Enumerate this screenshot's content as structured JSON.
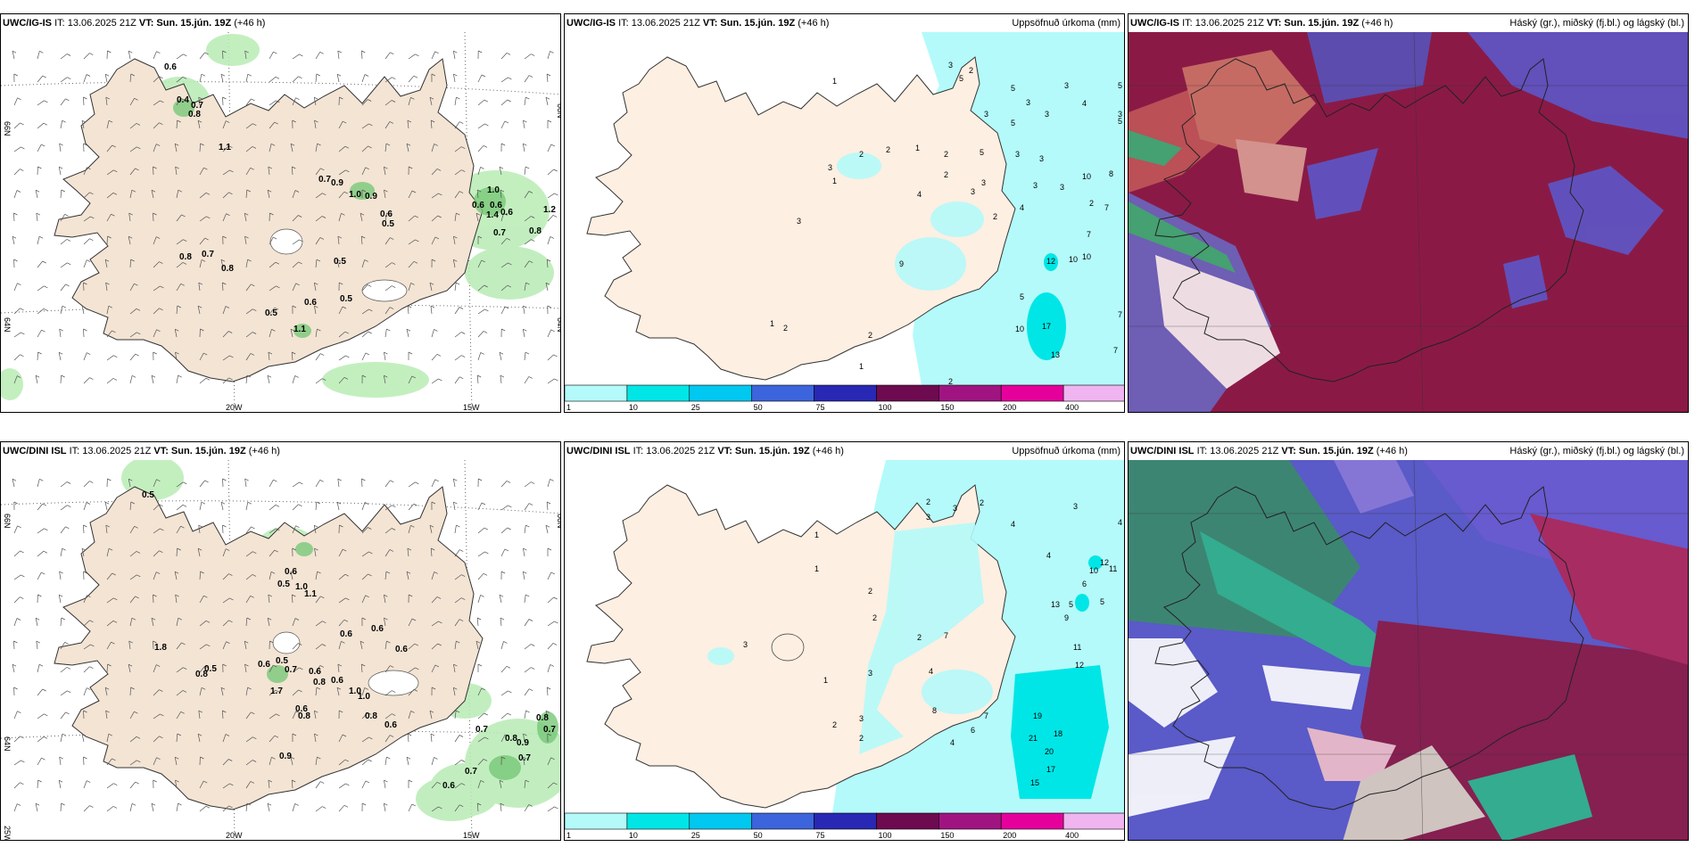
{
  "panels": {
    "p1": {
      "model": "UWC/IG-IS",
      "it": "IT: 13.06.2025 21Z",
      "vt_label": "VT:",
      "vt": "Sun. 15.jún. 19Z",
      "lead": "(+46 h)",
      "right": ""
    },
    "p2": {
      "model": "UWC/IG-IS",
      "it": "IT: 13.06.2025 21Z",
      "vt_label": "VT:",
      "vt": "Sun. 15.jún. 19Z",
      "lead": "(+46 h)",
      "right": "Uppsöfnuð úrkoma (mm)"
    },
    "p3": {
      "model": "UWC/IG-IS",
      "it": "IT: 13.06.2025 21Z",
      "vt_label": "VT:",
      "vt": "Sun. 15.jún. 19Z",
      "lead": "(+46 h)",
      "right": "Háský (gr.), miðský (fj.bl.) og lágský (bl.)"
    },
    "p4": {
      "model": "UWC/DINI ISL",
      "it": "IT: 13.06.2025 21Z",
      "vt_label": "VT:",
      "vt": "Sun. 15.jún. 19Z",
      "lead": "(+46 h)",
      "right": ""
    },
    "p5": {
      "model": "UWC/DINI ISL",
      "it": "IT: 13.06.2025 21Z",
      "vt_label": "VT:",
      "vt": "Sun. 15.jún. 19Z",
      "lead": "(+46 h)",
      "right": "Uppsöfnuð úrkoma (mm)"
    },
    "p6": {
      "model": "UWC/DINI ISL",
      "it": "IT: 13.06.2025 21Z",
      "vt_label": "VT:",
      "vt": "Sun. 15.jún. 19Z",
      "lead": "(+46 h)",
      "right": "Háský (gr.), miðský (fj.bl.) og lágský (bl.)"
    }
  },
  "axes": {
    "lon_20w": "20W",
    "lon_15w": "15W",
    "lat_66n": "66N",
    "lat_64n": "64N",
    "lon_25w": "25W"
  },
  "colorbar": {
    "labels": [
      "1",
      "10",
      "25",
      "50",
      "75",
      "100",
      "150",
      "200",
      "400"
    ],
    "colors": [
      "#b4fafa",
      "#00e6e6",
      "#00c8f0",
      "#3c64dc",
      "#2828b4",
      "#6e0a50",
      "#a01482",
      "#e6009b",
      "#f0b4f0"
    ]
  },
  "wind_labels_top": [
    "0.6",
    "0.4",
    "0.7",
    "0.8",
    "1.1",
    "0.7",
    "0.9",
    "1.0",
    "0.9",
    "0.6",
    "0.5",
    "1.0",
    "0.6",
    "0.6",
    "1.4",
    "0.6",
    "1.2",
    "0.7",
    "0.8",
    "0.8",
    "0.7",
    "0.8",
    "0.5",
    "0.6",
    "0.5",
    "0.5",
    "1.1"
  ],
  "wind_labels_bottom": [
    "0.5",
    "0.6",
    "0.5",
    "1.0",
    "1.1",
    "1.8",
    "0.6",
    "0.6",
    "0.6",
    "0.8",
    "0.5",
    "0.6",
    "0.5",
    "0.7",
    "0.6",
    "1.7",
    "0.8",
    "0.6",
    "1.0",
    "1.0",
    "0.6",
    "0.8",
    "0.6",
    "0.9",
    "0.8",
    "0.7",
    "0.7",
    "0.8",
    "0.8",
    "0.9",
    "0.7",
    "0.7",
    "0.6"
  ],
  "precip_top": [
    "1",
    "3",
    "5",
    "2",
    "5",
    "3",
    "3",
    "5",
    "3",
    "3",
    "3",
    "4",
    "5",
    "5",
    "5",
    "1",
    "2",
    "3",
    "2",
    "1",
    "2",
    "3",
    "3",
    "3",
    "2",
    "4",
    "3",
    "3",
    "2",
    "4",
    "3",
    "10",
    "8",
    "2",
    "7",
    "9",
    "10",
    "12",
    "10",
    "7",
    "7",
    "5",
    "17",
    "13",
    "10",
    "7",
    "2",
    "1",
    "3",
    "1",
    "2",
    "2"
  ],
  "precip_bottom": [
    "2",
    "3",
    "1",
    "3",
    "2",
    "4",
    "3",
    "4",
    "4",
    "1",
    "2",
    "5",
    "6",
    "5",
    "10",
    "12",
    "11",
    "13",
    "9",
    "11",
    "12",
    "19",
    "21",
    "18",
    "20",
    "17",
    "15",
    "4",
    "6",
    "7",
    "3",
    "2",
    "3",
    "1",
    "2",
    "3",
    "4",
    "2",
    "7",
    "8",
    "2"
  ]
}
